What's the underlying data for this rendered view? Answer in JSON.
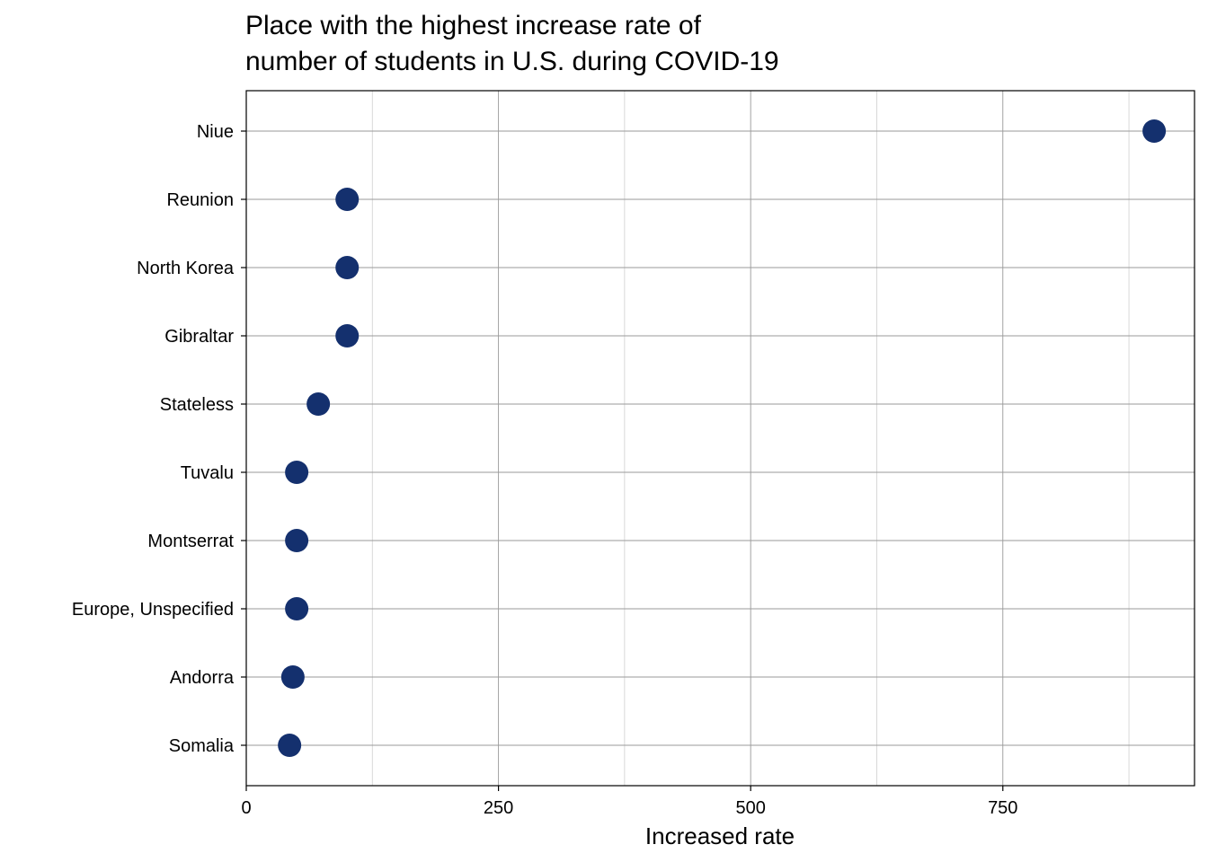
{
  "chart_data": {
    "type": "scatter",
    "title": "Place with the highest increase rate of number of students in U.S. during COVID-19",
    "title_lines": [
      "Place with the highest increase rate of",
      "number of students in U.S. during COVID-19"
    ],
    "xlabel": "Increased rate",
    "ylabel": "",
    "xlim": [
      0,
      940
    ],
    "x_ticks": [
      0,
      250,
      500,
      750
    ],
    "x_tick_labels": [
      "0",
      "250",
      "500",
      "750"
    ],
    "x_minor_ticks": [
      125,
      375,
      625,
      875
    ],
    "categories": [
      "Niue",
      "Reunion",
      "North Korea",
      "Gibraltar",
      "Stateless",
      "Tuvalu",
      "Montserrat",
      "Europe, Unspecified",
      "Andorra",
      "Somalia"
    ],
    "values": [
      900,
      100,
      100,
      100,
      71.4,
      50,
      50,
      50,
      46.2,
      42.9
    ],
    "grid": true,
    "point_color": "#14306E"
  }
}
